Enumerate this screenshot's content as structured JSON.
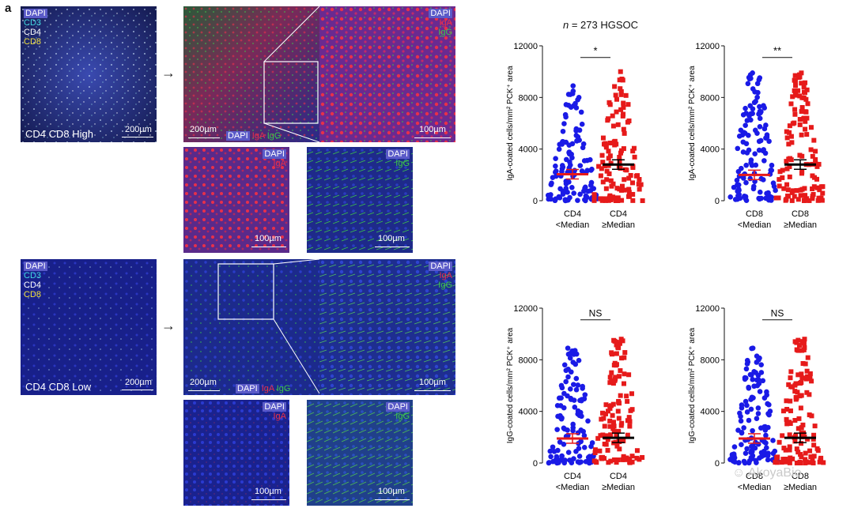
{
  "panel_letter": "a",
  "high": {
    "overview": {
      "labels": [
        "DAPI",
        "CD3",
        "CD4",
        "CD8"
      ],
      "scale": "200µm",
      "caption": "CD4 CD8 High"
    },
    "merge": {
      "labels": [
        "DAPI",
        "IgA",
        "IgG"
      ],
      "scale": "200µm"
    },
    "zoom": {
      "labels": [
        "DAPI",
        "IgA",
        "IgG"
      ],
      "scale": "100µm"
    },
    "iga": {
      "labels": [
        "DAPI",
        "IgA"
      ],
      "scale": "100µm"
    },
    "igg": {
      "labels": [
        "DAPI",
        "IgG"
      ],
      "scale": "100µm"
    }
  },
  "low": {
    "overview": {
      "labels": [
        "DAPI",
        "CD3",
        "CD4",
        "CD8"
      ],
      "scale": "200µm",
      "caption": "CD4 CD8 Low"
    },
    "merge": {
      "labels": [
        "DAPI",
        "IgA",
        "IgG"
      ],
      "scale": "200µm"
    },
    "zoom": {
      "labels": [
        "DAPI",
        "IgA",
        "IgG"
      ],
      "scale": "100µm"
    },
    "iga": {
      "labels": [
        "DAPI",
        "IgA"
      ],
      "scale": "100µm"
    },
    "igg": {
      "labels": [
        "DAPI",
        "IgG"
      ],
      "scale": "100µm"
    }
  },
  "arrow": "→",
  "cohort": {
    "n_symbol": "n",
    "rest": " = 273 HGSOC"
  },
  "colors": {
    "low_group": "#1a1ae6",
    "high_group": "#e61a1a",
    "dapi": "#2a32b8",
    "iga": "#e8304a",
    "igg": "#3cc84a",
    "mean_low": "#e61a1a",
    "mean_high": "#000000"
  },
  "chart_data": [
    {
      "type": "scatter",
      "ylabel": "IgA-coated cells/mm² PCK⁺ area",
      "ylim": [
        0,
        12000
      ],
      "yticks": [
        "0",
        "4000",
        "8000",
        "12000"
      ],
      "categories": [
        [
          "CD4",
          "<Median"
        ],
        [
          "CD4",
          "≥Median"
        ]
      ],
      "series": [
        {
          "mean": 2050,
          "max": 8900
        },
        {
          "mean": 2800,
          "max": 10000
        }
      ],
      "significance": "*"
    },
    {
      "type": "scatter",
      "ylabel": "IgA-coated cells/mm² PCK⁺ area",
      "ylim": [
        0,
        12000
      ],
      "yticks": [
        "0",
        "4000",
        "8000",
        "12000"
      ],
      "categories": [
        [
          "CD8",
          "<Median"
        ],
        [
          "CD8",
          "≥Median"
        ]
      ],
      "series": [
        {
          "mean": 2000,
          "max": 9900
        },
        {
          "mean": 2800,
          "max": 9900
        }
      ],
      "significance": "**"
    },
    {
      "type": "scatter",
      "ylabel": "IgG-coated cells/mm² PCK⁺ area",
      "ylim": [
        0,
        12000
      ],
      "yticks": [
        "0",
        "4000",
        "8000",
        "12000"
      ],
      "categories": [
        [
          "CD4",
          "<Median"
        ],
        [
          "CD4",
          "≥Median"
        ]
      ],
      "series": [
        {
          "mean": 1900,
          "max": 8900
        },
        {
          "mean": 1950,
          "max": 9600
        }
      ],
      "significance": "NS"
    },
    {
      "type": "scatter",
      "ylabel": "IgG-coated cells/mm² PCK⁺ area",
      "ylim": [
        0,
        12000
      ],
      "yticks": [
        "0",
        "4000",
        "8000",
        "12000"
      ],
      "categories": [
        [
          "CD8",
          "<Median"
        ],
        [
          "CD8",
          "≥Median"
        ]
      ],
      "series": [
        {
          "mean": 1900,
          "max": 8900
        },
        {
          "mean": 1950,
          "max": 9600
        }
      ],
      "significance": "NS"
    }
  ],
  "watermark": "AkoyaBio"
}
